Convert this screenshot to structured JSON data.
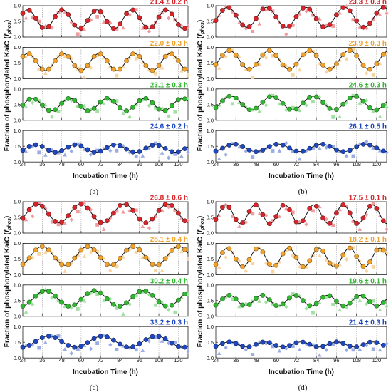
{
  "figure": {
    "panel_labels": [
      "(a)",
      "(b)",
      "(c)",
      "(d)"
    ],
    "ylabel_prefix": "Fraction of phosphorylated KaiC (",
    "ylabel_var": "f",
    "ylabel_sub": "phos",
    "ylabel_suffix": ")",
    "xlabel": "Incubation Time (h)",
    "colors": {
      "red": "#d6262b",
      "orange": "#f0a22b",
      "green": "#31b831",
      "blue": "#1f47c0"
    }
  },
  "chart_data": [
    {
      "panel": "(a)",
      "type": "scatter",
      "xlabel": "Incubation Time (h)",
      "ylabel": "Fraction of phosphorylated KaiC (fphos)",
      "xlim": [
        24,
        126
      ],
      "xticks": [
        24,
        36,
        48,
        60,
        72,
        84,
        96,
        108,
        120
      ],
      "ylim": [
        0,
        1.0
      ],
      "yticks": [
        0,
        0.5,
        1.0
      ],
      "subplots": [
        {
          "period_label": "21.4 ± 0.2 h",
          "color": "red",
          "period": 21.4,
          "mean": 0.57,
          "amplitude": 0.3,
          "peak": 27
        },
        {
          "period_label": "22.0 ± 0.3 h",
          "color": "orange",
          "period": 22.0,
          "mean": 0.53,
          "amplitude": 0.27,
          "peak": 27
        },
        {
          "period_label": "23.1 ± 0.3 h",
          "color": "green",
          "period": 23.1,
          "mean": 0.5,
          "amplitude": 0.2,
          "peak": 30
        },
        {
          "period_label": "24.6 ± 0.2 h",
          "color": "blue",
          "period": 24.6,
          "mean": 0.43,
          "amplitude": 0.12,
          "peak": 32
        }
      ]
    },
    {
      "panel": "(b)",
      "type": "scatter",
      "xlabel": "Incubation Time (h)",
      "ylabel": "Fraction of phosphorylated KaiC (fphos)",
      "xlim": [
        24,
        126
      ],
      "xticks": [
        24,
        36,
        48,
        60,
        72,
        84,
        96,
        108,
        120
      ],
      "ylim": [
        0,
        1.0
      ],
      "yticks": [
        0,
        0.5,
        1.0
      ],
      "subplots": [
        {
          "period_label": "23.3 ± 0.3 h",
          "color": "red",
          "period": 23.3,
          "mean": 0.63,
          "amplitude": 0.32,
          "peak": 31
        },
        {
          "period_label": "23.9 ± 0.3 h",
          "color": "orange",
          "period": 23.9,
          "mean": 0.6,
          "amplitude": 0.3,
          "peak": 32
        },
        {
          "period_label": "24.6 ± 0.3 h",
          "color": "green",
          "period": 24.6,
          "mean": 0.55,
          "amplitude": 0.22,
          "peak": 33
        },
        {
          "period_label": "26.1 ± 0.5 h",
          "color": "blue",
          "period": 26.1,
          "mean": 0.45,
          "amplitude": 0.12,
          "peak": 35
        }
      ]
    },
    {
      "panel": "(c)",
      "type": "scatter",
      "xlabel": "Incubation Time (h)",
      "ylabel": "Fraction of phosphorylated KaiC (fphos)",
      "xlim": [
        24,
        126
      ],
      "xticks": [
        24,
        36,
        48,
        60,
        72,
        84,
        96,
        108,
        120
      ],
      "ylim": [
        0,
        1.0
      ],
      "yticks": [
        0,
        0.5,
        1.0
      ],
      "subplots": [
        {
          "period_label": "26.8 ± 0.6 h",
          "color": "red",
          "period": 26.8,
          "mean": 0.63,
          "amplitude": 0.3,
          "peak": 33
        },
        {
          "period_label": "28.1 ± 0.4 h",
          "color": "orange",
          "period": 28.1,
          "mean": 0.6,
          "amplitude": 0.3,
          "peak": 36
        },
        {
          "period_label": "30.2 ± 0.4 h",
          "color": "green",
          "period": 30.2,
          "mean": 0.57,
          "amplitude": 0.25,
          "peak": 38
        },
        {
          "period_label": "33.2 ± 0.3 h",
          "color": "blue",
          "period": 33.2,
          "mean": 0.52,
          "amplitude": 0.18,
          "peak": 40
        }
      ]
    },
    {
      "panel": "(d)",
      "type": "scatter",
      "xlabel": "Incubation Time (h)",
      "ylabel": "Fraction of phosphorylated KaiC (fphos)",
      "xlim": [
        24,
        126
      ],
      "xticks": [
        24,
        36,
        48,
        60,
        72,
        84,
        96,
        108,
        120
      ],
      "ylim": [
        0,
        1.0
      ],
      "yticks": [
        0,
        0.5,
        1.0
      ],
      "subplots": [
        {
          "period_label": "17.5 ± 0.1 h",
          "color": "red",
          "period": 17.5,
          "mean": 0.6,
          "amplitude": 0.3,
          "peak": 30
        },
        {
          "period_label": "18.2 ± 0.1 h",
          "color": "orange",
          "period": 18.2,
          "mean": 0.55,
          "amplitude": 0.3,
          "peak": 31
        },
        {
          "period_label": "19.6 ± 0.1 h",
          "color": "green",
          "period": 19.6,
          "mean": 0.5,
          "amplitude": 0.17,
          "peak": 32
        },
        {
          "period_label": "21.4 ± 0.3 h",
          "color": "blue",
          "period": 21.4,
          "mean": 0.43,
          "amplitude": 0.08,
          "peak": 32
        }
      ]
    }
  ]
}
